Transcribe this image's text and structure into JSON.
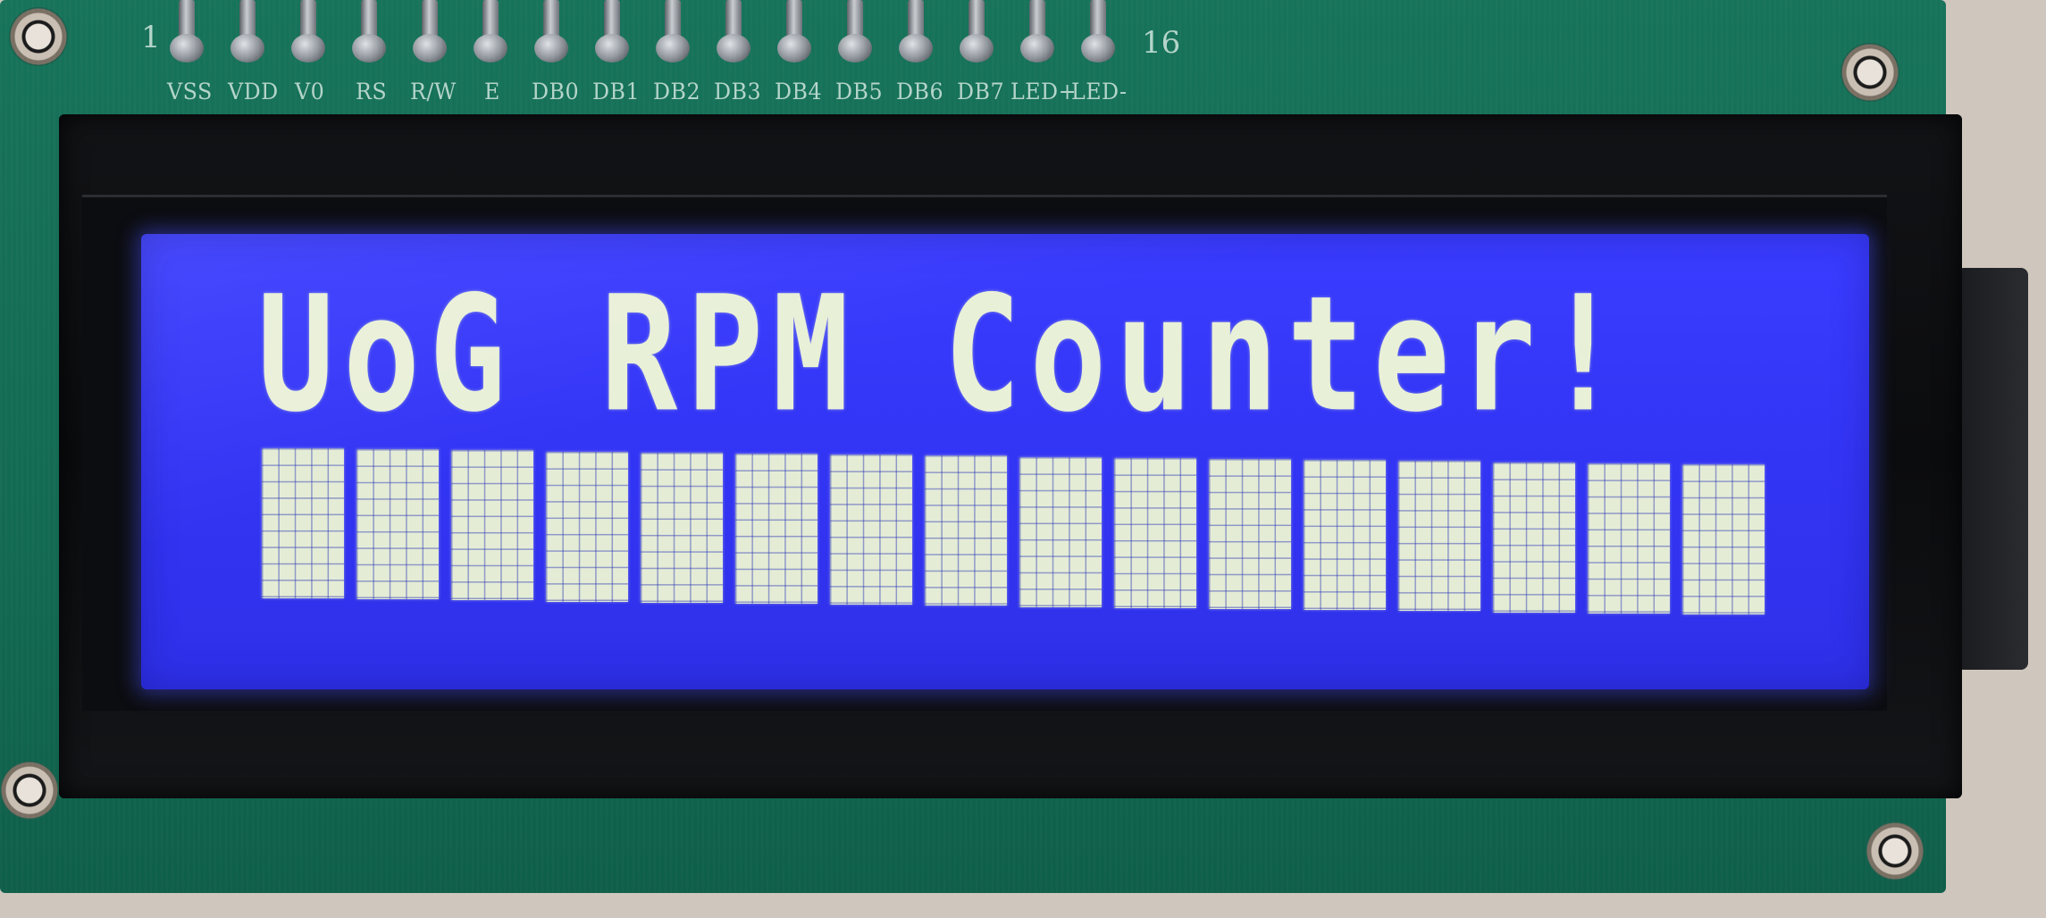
{
  "board": {
    "pin_start": "1",
    "pin_end": "16",
    "pin_labels": [
      "VSS",
      "VDD",
      "V0",
      "RS",
      "R/W",
      "E",
      "DB0",
      "DB1",
      "DB2",
      "DB3",
      "DB4",
      "DB5",
      "DB6",
      "DB7",
      "LED+",
      "LED-"
    ]
  },
  "lcd": {
    "line1": "UoG RPM Counter!",
    "line2_block_count": 16,
    "backlight_color": "#3436f8",
    "pixel_color": "#e4ecd6"
  }
}
